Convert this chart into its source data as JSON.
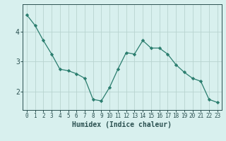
{
  "x": [
    0,
    1,
    2,
    3,
    4,
    5,
    6,
    7,
    8,
    9,
    10,
    11,
    12,
    13,
    14,
    15,
    16,
    17,
    18,
    19,
    20,
    21,
    22,
    23
  ],
  "y": [
    4.55,
    4.2,
    3.7,
    3.25,
    2.75,
    2.7,
    2.6,
    2.45,
    1.75,
    1.7,
    2.15,
    2.75,
    3.3,
    3.25,
    3.7,
    3.45,
    3.45,
    3.25,
    2.9,
    2.65,
    2.45,
    2.35,
    1.75,
    1.65
  ],
  "line_color": "#2a7d6e",
  "marker": "D",
  "marker_size": 2.2,
  "bg_color": "#d8f0ee",
  "grid_color": "#b8d4d0",
  "xlabel": "Humidex (Indice chaleur)",
  "xlim": [
    -0.5,
    23.5
  ],
  "ylim": [
    1.4,
    4.9
  ],
  "yticks": [
    2,
    3,
    4
  ],
  "xticks": [
    0,
    1,
    2,
    3,
    4,
    5,
    6,
    7,
    8,
    9,
    10,
    11,
    12,
    13,
    14,
    15,
    16,
    17,
    18,
    19,
    20,
    21,
    22,
    23
  ],
  "tick_fontsize": 5.5,
  "xlabel_fontsize": 7.0,
  "tick_color": "#2a5050",
  "axis_color": "#2a5050",
  "grid_linewidth": 0.6,
  "line_linewidth": 0.9
}
